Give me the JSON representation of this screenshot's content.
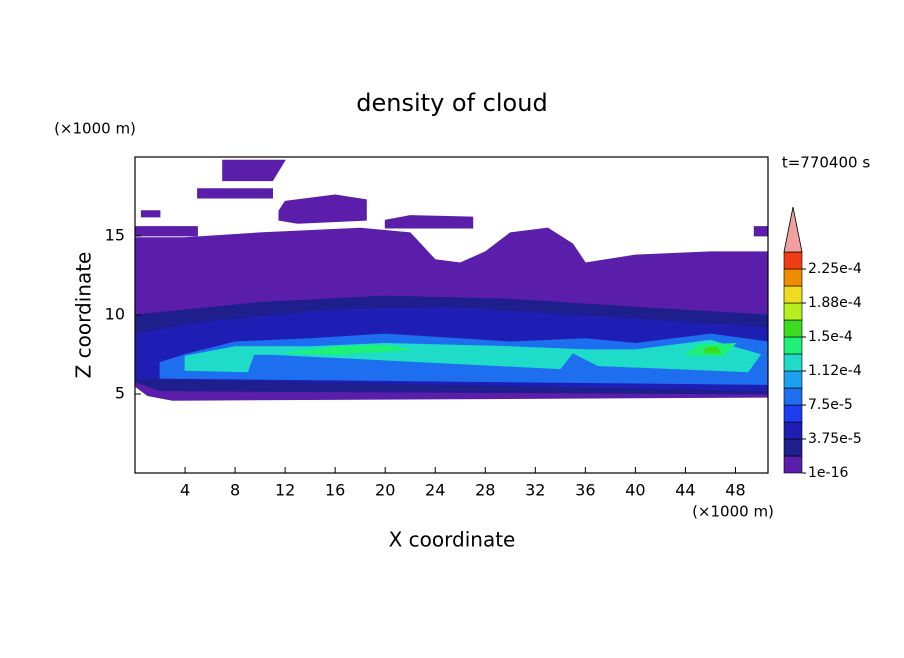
{
  "chart_data": {
    "type": "contour",
    "title": "density of cloud",
    "x_label": "X coordinate",
    "y_label": "Z coordinate",
    "x_unit": "(×1000 m)",
    "y_unit": "(×1000 m)",
    "annotation": "t=770400 s",
    "xlim": [
      0,
      50.6
    ],
    "ylim": [
      0,
      20
    ],
    "xticks": [
      4,
      8,
      12,
      16,
      20,
      24,
      28,
      32,
      36,
      40,
      44,
      48
    ],
    "yticks": [
      5,
      10,
      15
    ],
    "levels": [
      1e-16,
      1.875e-05,
      3.75e-05,
      5.625e-05,
      7.5e-05,
      9.375e-05,
      0.0001125,
      0.00013125,
      0.00015,
      0.00016875,
      0.0001875,
      0.00020625,
      0.000225
    ],
    "colors": [
      "#5a1eaa",
      "#1e1e8c",
      "#1e1eb4",
      "#1e3cf0",
      "#1e6ef0",
      "#1ea0f0",
      "#1edcc8",
      "#1ef078",
      "#3cdc1e",
      "#b4f01e",
      "#f0dc1e",
      "#f08c00",
      "#f03c14"
    ],
    "over_color": "#f0a0a0",
    "colorbar_ticks": [
      {
        "value": 1e-16,
        "label": "1e-16"
      },
      {
        "value": 3.75e-05,
        "label": "3.75e-5"
      },
      {
        "value": 7.5e-05,
        "label": "7.5e-5"
      },
      {
        "value": 0.0001125,
        "label": "1.12e-4"
      },
      {
        "value": 0.00015,
        "label": "1.5e-4"
      },
      {
        "value": 0.0001875,
        "label": "1.88e-4"
      },
      {
        "value": 0.000225,
        "label": "2.25e-4"
      }
    ],
    "regions": [
      {
        "level": 1e-16,
        "x": [
          0,
          1,
          3,
          50.6,
          50.6,
          46,
          40,
          36,
          35,
          33,
          30,
          28,
          26,
          24,
          22,
          18,
          10,
          4,
          0
        ],
        "z": [
          5.5,
          4.9,
          4.6,
          4.8,
          14,
          14,
          13.8,
          13.3,
          14.5,
          15.5,
          15.2,
          14,
          13.3,
          13.5,
          15.2,
          15.5,
          15.2,
          14.9,
          14.9
        ]
      },
      {
        "level": 1e-16,
        "x": [
          0,
          5,
          5,
          0
        ],
        "z": [
          15,
          15,
          15.6,
          15.6
        ]
      },
      {
        "level": 1e-16,
        "x": [
          11.5,
          13,
          18.5,
          18.5,
          16,
          12,
          11.5
        ],
        "z": [
          16,
          15.8,
          16,
          17.3,
          17.6,
          17.2,
          16.6
        ]
      },
      {
        "level": 1e-16,
        "x": [
          20,
          27,
          27,
          22,
          20
        ],
        "z": [
          15.5,
          15.5,
          16.2,
          16.3,
          16
        ]
      },
      {
        "level": 1e-16,
        "x": [
          5,
          11,
          11,
          5
        ],
        "z": [
          17.4,
          17.4,
          18,
          18
        ]
      },
      {
        "level": 1e-16,
        "x": [
          7,
          11,
          12,
          7
        ],
        "z": [
          18.5,
          18.5,
          19.8,
          19.8
        ]
      },
      {
        "level": 1e-16,
        "x": [
          0.5,
          2,
          2,
          0.5
        ],
        "z": [
          16.2,
          16.2,
          16.6,
          16.6
        ]
      },
      {
        "level": 1e-16,
        "x": [
          49.5,
          50.6,
          50.6,
          49.5
        ],
        "z": [
          15,
          15,
          15.6,
          15.6
        ]
      },
      {
        "level": 1.875e-05,
        "x": [
          0,
          2,
          50.6,
          50.6,
          40,
          30,
          20,
          10,
          0
        ],
        "z": [
          5.8,
          5.2,
          5.0,
          10,
          10.5,
          11,
          11.2,
          10.8,
          10
        ]
      },
      {
        "level": 3.75e-05,
        "x": [
          0,
          50.6,
          50.6,
          45,
          35,
          25,
          15,
          5,
          0
        ],
        "z": [
          6,
          5.2,
          9.2,
          9.5,
          10,
          10.5,
          10.3,
          9.5,
          8.8
        ]
      },
      {
        "level": 7.5e-05,
        "x": [
          2,
          50.6,
          50.6,
          46,
          40,
          36,
          30,
          20,
          14,
          8,
          4,
          2
        ],
        "z": [
          6,
          5.6,
          8.3,
          8.8,
          8.2,
          8.5,
          8.3,
          8.8,
          8.5,
          8.3,
          7.5,
          7
        ]
      },
      {
        "level": 0.0001125,
        "x": [
          4,
          9,
          9.5,
          11,
          34,
          35,
          37,
          49,
          50,
          46,
          40,
          36,
          30,
          20,
          14,
          8,
          4
        ],
        "z": [
          6.5,
          6.4,
          7.5,
          7.5,
          6.6,
          7.6,
          6.8,
          6.4,
          7.5,
          8.4,
          7.8,
          7.8,
          8,
          8.2,
          8,
          8,
          7.4
        ]
      },
      {
        "level": 0.00013125,
        "x": [
          12,
          16,
          20,
          22,
          16
        ],
        "z": [
          7.6,
          8,
          8.1,
          7.8,
          7.5
        ]
      },
      {
        "level": 0.00013125,
        "x": [
          44,
          47,
          48,
          45
        ],
        "z": [
          7.5,
          7.4,
          8.2,
          8.1
        ]
      },
      {
        "level": 0.00015,
        "x": [
          45.5,
          46.8,
          46.5,
          45.6
        ],
        "z": [
          7.6,
          7.6,
          8.0,
          7.9
        ]
      }
    ]
  }
}
